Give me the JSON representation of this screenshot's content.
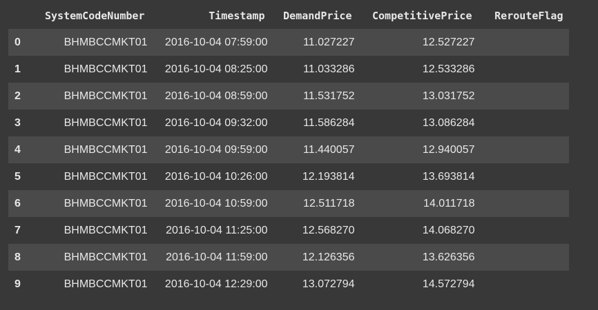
{
  "dataframe": {
    "columns": [
      "",
      "SystemCodeNumber",
      "Timestamp",
      "DemandPrice",
      "CompetitivePrice",
      "RerouteFlag"
    ],
    "rows": [
      {
        "index": "0",
        "SystemCodeNumber": "BHMBCCMKT01",
        "Timestamp": "2016-10-04 07:59:00",
        "DemandPrice": "11.027227",
        "CompetitivePrice": "12.527227",
        "RerouteFlag": ""
      },
      {
        "index": "1",
        "SystemCodeNumber": "BHMBCCMKT01",
        "Timestamp": "2016-10-04 08:25:00",
        "DemandPrice": "11.033286",
        "CompetitivePrice": "12.533286",
        "RerouteFlag": ""
      },
      {
        "index": "2",
        "SystemCodeNumber": "BHMBCCMKT01",
        "Timestamp": "2016-10-04 08:59:00",
        "DemandPrice": "11.531752",
        "CompetitivePrice": "13.031752",
        "RerouteFlag": ""
      },
      {
        "index": "3",
        "SystemCodeNumber": "BHMBCCMKT01",
        "Timestamp": "2016-10-04 09:32:00",
        "DemandPrice": "11.586284",
        "CompetitivePrice": "13.086284",
        "RerouteFlag": ""
      },
      {
        "index": "4",
        "SystemCodeNumber": "BHMBCCMKT01",
        "Timestamp": "2016-10-04 09:59:00",
        "DemandPrice": "11.440057",
        "CompetitivePrice": "12.940057",
        "RerouteFlag": ""
      },
      {
        "index": "5",
        "SystemCodeNumber": "BHMBCCMKT01",
        "Timestamp": "2016-10-04 10:26:00",
        "DemandPrice": "12.193814",
        "CompetitivePrice": "13.693814",
        "RerouteFlag": ""
      },
      {
        "index": "6",
        "SystemCodeNumber": "BHMBCCMKT01",
        "Timestamp": "2016-10-04 10:59:00",
        "DemandPrice": "12.511718",
        "CompetitivePrice": "14.011718",
        "RerouteFlag": ""
      },
      {
        "index": "7",
        "SystemCodeNumber": "BHMBCCMKT01",
        "Timestamp": "2016-10-04 11:25:00",
        "DemandPrice": "12.568270",
        "CompetitivePrice": "14.068270",
        "RerouteFlag": ""
      },
      {
        "index": "8",
        "SystemCodeNumber": "BHMBCCMKT01",
        "Timestamp": "2016-10-04 11:59:00",
        "DemandPrice": "12.126356",
        "CompetitivePrice": "13.626356",
        "RerouteFlag": ""
      },
      {
        "index": "9",
        "SystemCodeNumber": "BHMBCCMKT01",
        "Timestamp": "2016-10-04 12:29:00",
        "DemandPrice": "13.072794",
        "CompetitivePrice": "14.572794",
        "RerouteFlag": ""
      }
    ]
  },
  "colors": {
    "background": "#383838",
    "row_stripe": "#4a4a4a",
    "text": "#e8e8e8"
  }
}
